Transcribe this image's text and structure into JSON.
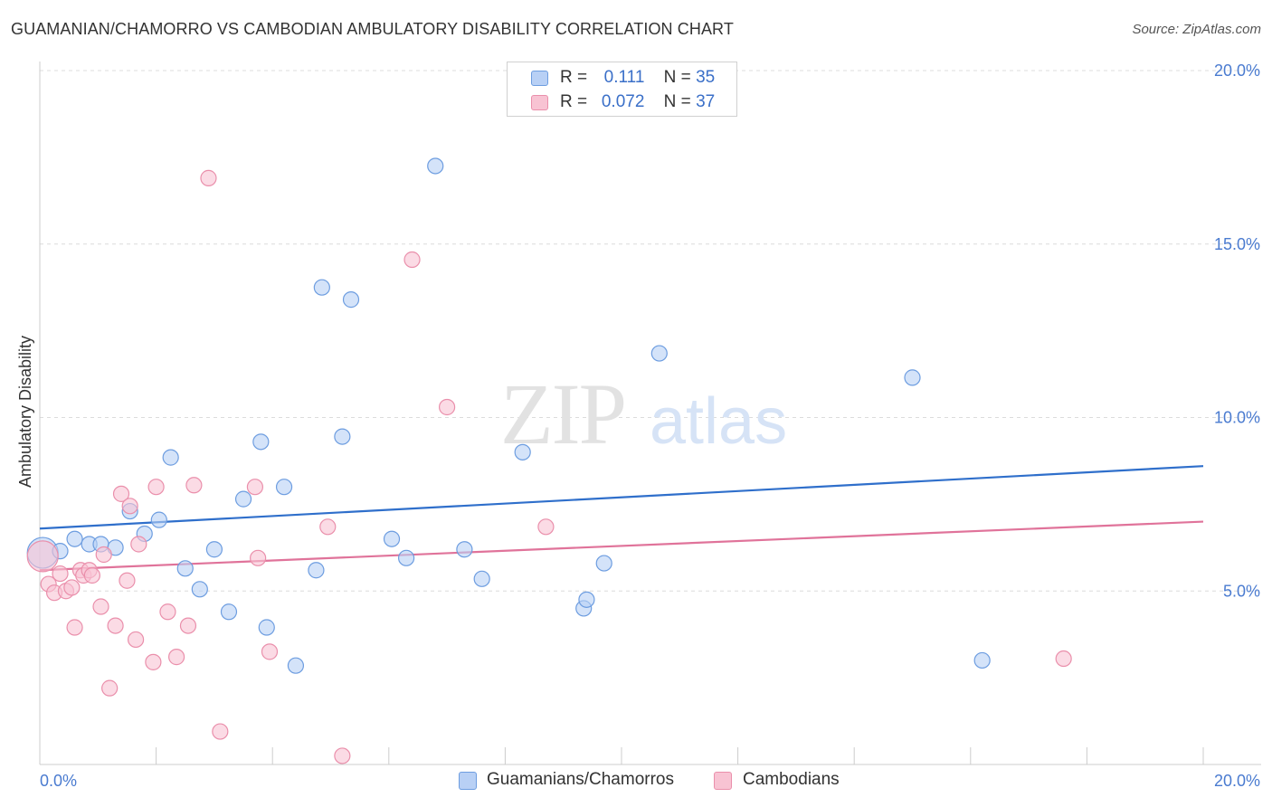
{
  "title": "GUAMANIAN/CHAMORRO VS CAMBODIAN AMBULATORY DISABILITY CORRELATION CHART",
  "source": "Source: ZipAtlas.com",
  "watermark": {
    "zip": "ZIP",
    "atlas": "atlas"
  },
  "legend": {
    "rows": [
      {
        "r_label": "R =",
        "r_value": "0.111",
        "n_label": "N =",
        "n_value": "35"
      },
      {
        "r_label": "R =",
        "r_value": "0.072",
        "n_label": "N =",
        "n_value": "37"
      }
    ]
  },
  "bottom_legend": {
    "series1": "Guamanians/Chamorros",
    "series2": "Cambodians"
  },
  "colors": {
    "blue_fill": "#b8d0f5",
    "blue_stroke": "#6d9de0",
    "blue_line": "#2f6fcb",
    "pink_fill": "#f8c3d3",
    "pink_stroke": "#ea8fab",
    "pink_line": "#e0739a",
    "grid": "#dcdcdc",
    "tick_text": "#4a7bd0"
  },
  "chart_data": {
    "type": "scatter",
    "title": "GUAMANIAN/CHAMORRO VS CAMBODIAN AMBULATORY DISABILITY CORRELATION CHART",
    "xlabel": "",
    "ylabel": "Ambulatory Disability",
    "xlim": [
      0,
      20
    ],
    "ylim": [
      0,
      20
    ],
    "x_tick_labels": [
      "0.0%",
      "20.0%"
    ],
    "y_tick_labels": [
      "5.0%",
      "10.0%",
      "15.0%",
      "20.0%"
    ],
    "y_ticks": [
      5,
      10,
      15,
      20
    ],
    "grid": true,
    "legend_position": "top-center",
    "series": [
      {
        "name": "Guamanians/Chamorros",
        "color": "blue",
        "r": 0.111,
        "n": 35,
        "trend": {
          "x0": 0,
          "y0": 6.8,
          "x1": 20,
          "y1": 8.6
        },
        "points": [
          {
            "x": 0.05,
            "y": 6.1,
            "big": true
          },
          {
            "x": 0.35,
            "y": 6.15
          },
          {
            "x": 0.6,
            "y": 6.5
          },
          {
            "x": 0.85,
            "y": 6.35
          },
          {
            "x": 1.05,
            "y": 6.35
          },
          {
            "x": 1.3,
            "y": 6.25
          },
          {
            "x": 1.55,
            "y": 7.3
          },
          {
            "x": 1.8,
            "y": 6.65
          },
          {
            "x": 2.05,
            "y": 7.05
          },
          {
            "x": 2.25,
            "y": 8.85
          },
          {
            "x": 2.5,
            "y": 5.65
          },
          {
            "x": 2.75,
            "y": 5.05
          },
          {
            "x": 3.0,
            "y": 6.2
          },
          {
            "x": 3.25,
            "y": 4.4
          },
          {
            "x": 3.5,
            "y": 7.65
          },
          {
            "x": 3.8,
            "y": 9.3
          },
          {
            "x": 3.9,
            "y": 3.95
          },
          {
            "x": 4.2,
            "y": 8.0
          },
          {
            "x": 4.4,
            "y": 2.85
          },
          {
            "x": 4.75,
            "y": 5.6
          },
          {
            "x": 4.85,
            "y": 13.75
          },
          {
            "x": 5.2,
            "y": 9.45
          },
          {
            "x": 5.35,
            "y": 13.4
          },
          {
            "x": 6.05,
            "y": 6.5
          },
          {
            "x": 6.3,
            "y": 5.95
          },
          {
            "x": 6.8,
            "y": 17.25
          },
          {
            "x": 7.3,
            "y": 6.2
          },
          {
            "x": 7.6,
            "y": 5.35
          },
          {
            "x": 8.3,
            "y": 9.0
          },
          {
            "x": 9.35,
            "y": 4.5
          },
          {
            "x": 9.4,
            "y": 4.75
          },
          {
            "x": 9.7,
            "y": 5.8
          },
          {
            "x": 10.65,
            "y": 11.85
          },
          {
            "x": 15.0,
            "y": 11.15
          },
          {
            "x": 16.2,
            "y": 3.0
          }
        ]
      },
      {
        "name": "Cambodians",
        "color": "pink",
        "r": 0.072,
        "n": 37,
        "trend": {
          "x0": 0,
          "y0": 5.6,
          "x1": 20,
          "y1": 7.0
        },
        "points": [
          {
            "x": 0.15,
            "y": 5.2
          },
          {
            "x": 0.25,
            "y": 4.95
          },
          {
            "x": 0.35,
            "y": 5.5
          },
          {
            "x": 0.45,
            "y": 5.0
          },
          {
            "x": 0.55,
            "y": 5.1
          },
          {
            "x": 0.6,
            "y": 3.95
          },
          {
            "x": 0.7,
            "y": 5.6
          },
          {
            "x": 0.75,
            "y": 5.45
          },
          {
            "x": 0.85,
            "y": 5.6
          },
          {
            "x": 0.9,
            "y": 5.45
          },
          {
            "x": 1.05,
            "y": 4.55
          },
          {
            "x": 1.1,
            "y": 6.05
          },
          {
            "x": 1.2,
            "y": 2.2
          },
          {
            "x": 1.3,
            "y": 4.0
          },
          {
            "x": 1.4,
            "y": 7.8
          },
          {
            "x": 1.5,
            "y": 5.3
          },
          {
            "x": 1.55,
            "y": 7.45
          },
          {
            "x": 1.65,
            "y": 3.6
          },
          {
            "x": 1.7,
            "y": 6.35
          },
          {
            "x": 1.95,
            "y": 2.95
          },
          {
            "x": 2.0,
            "y": 8.0
          },
          {
            "x": 2.2,
            "y": 4.4
          },
          {
            "x": 2.35,
            "y": 3.1
          },
          {
            "x": 2.55,
            "y": 4.0
          },
          {
            "x": 2.65,
            "y": 8.05
          },
          {
            "x": 2.9,
            "y": 16.9
          },
          {
            "x": 3.1,
            "y": 0.95
          },
          {
            "x": 3.7,
            "y": 8.0
          },
          {
            "x": 3.75,
            "y": 5.95
          },
          {
            "x": 3.95,
            "y": 3.25
          },
          {
            "x": 4.95,
            "y": 6.85
          },
          {
            "x": 5.2,
            "y": 0.25
          },
          {
            "x": 6.4,
            "y": 14.55
          },
          {
            "x": 7.0,
            "y": 10.3
          },
          {
            "x": 8.7,
            "y": 6.85
          },
          {
            "x": 17.6,
            "y": 3.05
          },
          {
            "x": 0.05,
            "y": 6.0,
            "big": true
          }
        ]
      }
    ]
  }
}
